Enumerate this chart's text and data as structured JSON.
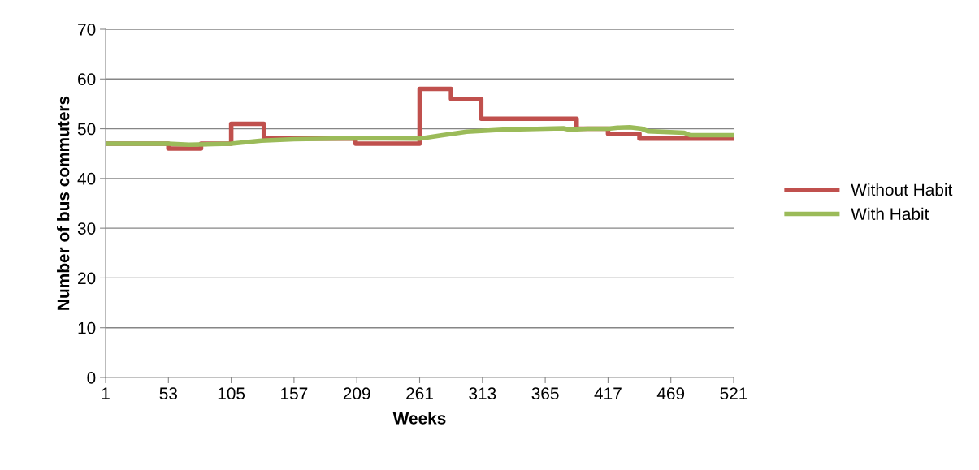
{
  "chart_data": {
    "type": "line",
    "xlabel": "Weeks",
    "ylabel": "Number of bus commuters",
    "xlim": [
      1,
      521
    ],
    "xticks": [
      1,
      53,
      105,
      157,
      209,
      261,
      313,
      365,
      417,
      469,
      521
    ],
    "ylim": [
      0,
      70
    ],
    "yticks": [
      0,
      10,
      20,
      30,
      40,
      50,
      60,
      70
    ],
    "grid": "y",
    "legend": "right",
    "series": [
      {
        "name": "Without Habit",
        "type": "step",
        "color": "#c0504d",
        "x": [
          1,
          53,
          80,
          105,
          132,
          208,
          261,
          287,
          312,
          391,
          417,
          443,
          521
        ],
        "values": [
          47,
          46,
          47,
          51,
          48,
          47,
          58,
          56,
          52,
          50,
          49,
          48,
          48
        ]
      },
      {
        "name": "With Habit",
        "color": "#9bbb59",
        "x": [
          1,
          53,
          70,
          90,
          105,
          130,
          157,
          209,
          261,
          280,
          300,
          330,
          365,
          380,
          385,
          400,
          417,
          425,
          435,
          445,
          450,
          480,
          485,
          521
        ],
        "values": [
          47,
          47,
          46.8,
          46.9,
          47,
          47.6,
          47.9,
          48.1,
          48,
          48.7,
          49.4,
          49.8,
          50,
          50.1,
          49.8,
          50,
          50,
          50.2,
          50.3,
          50,
          49.5,
          49.2,
          48.7,
          48.7
        ]
      }
    ]
  }
}
